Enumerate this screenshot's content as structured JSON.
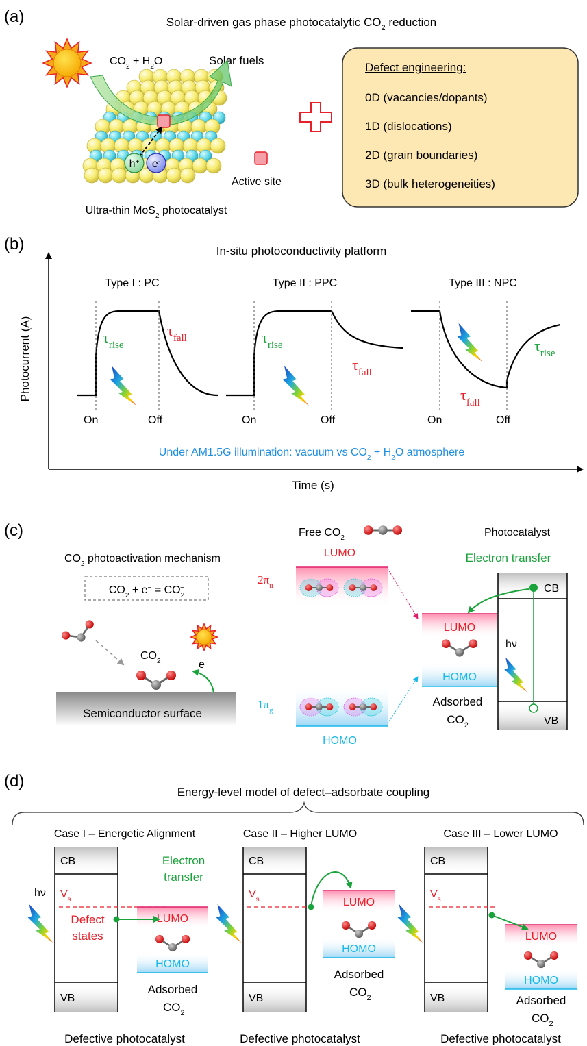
{
  "colors": {
    "red": "#e8202a",
    "green": "#1aa33a",
    "blue": "#1e8fe0",
    "cyan": "#19b8e8",
    "panel_fill": "#fde7b3",
    "mos2_yellow": "#f7ec70",
    "mos2_cyan": "#5ad6e6"
  },
  "panel_a": {
    "label": "(a)",
    "title_pre": "Solar-driven gas phase photocatalytic CO",
    "title_sub": "2",
    "title_post": " reduction",
    "reactant_pre": "CO",
    "reactant_sub": "2",
    "reactant_mid": " + H",
    "reactant_sub2": "2",
    "reactant_post": "O",
    "product": "Solar fuels",
    "hole": "h",
    "hole_sup": "+",
    "electron": "e",
    "electron_sup": "-",
    "active_site": "Active site",
    "caption_pre": "Ultra-thin MoS",
    "caption_sub": "2",
    "caption_post": " photocatalyst",
    "box_title": "Defect engineering:",
    "defect_items": [
      "0D (vacancies/dopants)",
      "1D (dislocations)",
      "2D (grain boundaries)",
      "3D (bulk heterogeneities)"
    ]
  },
  "panel_b": {
    "label": "(b)",
    "title": "In-situ photoconductivity platform",
    "y_label": "Photocurrent (A)",
    "x_label": "Time (s)",
    "types": [
      "Type I : PC",
      "Type II : PPC",
      "Type III : NPC"
    ],
    "tau": "τ",
    "rise": "rise",
    "fall": "fall",
    "on": "On",
    "off": "Off",
    "footer_pre": "Under AM1.5G illumination: vacuum vs  CO",
    "footer_sub": "2",
    "footer_mid": " + H",
    "footer_sub2": "2",
    "footer_post": "O atmosphere"
  },
  "panel_c": {
    "label": "(c)",
    "mech_pre": "CO",
    "mech_sub": "2",
    "mech_post": " photoactivation mechanism",
    "eq_a": "CO",
    "eq_a_sub": "2",
    "eq_b": " + e",
    "eq_b_sup": "−",
    "eq_c": " = CO",
    "eq_c_sub": "2",
    "eq_c_sup": "−",
    "anion": "CO",
    "anion_sub": "2",
    "anion_sup": "−",
    "electron": "e",
    "electron_sup": "−",
    "surface": "Semiconductor surface",
    "free_pre": "Free CO",
    "free_sub": "2",
    "lumo": "LUMO",
    "homo": "HOMO",
    "pi_u": "2π",
    "pi_u_sub": "u",
    "pi_g": "1π",
    "pi_g_sub": "g",
    "photocatalyst": "Photocatalyst",
    "electron_transfer": "Electron transfer",
    "cb": "CB",
    "vb": "VB",
    "hv": "hν",
    "adsorbed": "Adsorbed",
    "co2_pre": "CO",
    "co2_sub": "2"
  },
  "panel_d": {
    "label": "(d)",
    "title": "Energy-level model of defect–adsorbate coupling",
    "cases": [
      "Case I – Energetic Alignment",
      "Case II – Higher LUMO",
      "Case III – Lower LUMO"
    ],
    "cb": "CB",
    "vb": "VB",
    "hv": "hν",
    "vs": "V",
    "vs_sub": "s",
    "electron_transfer_1": "Electron",
    "electron_transfer_2": "transfer",
    "defect_states_1": "Defect",
    "defect_states_2": "states",
    "lumo": "LUMO",
    "homo": "HOMO",
    "adsorbed": "Adsorbed",
    "co2_pre": "CO",
    "co2_sub": "2",
    "caption": "Defective photocatalyst"
  }
}
